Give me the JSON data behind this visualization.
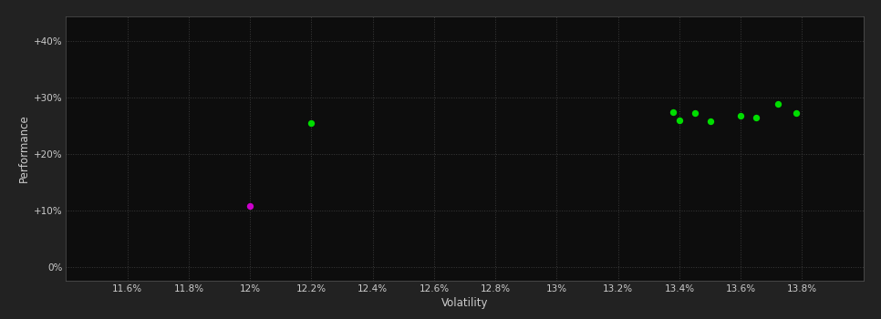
{
  "background_color": "#222222",
  "plot_bg_color": "#0d0d0d",
  "grid_color": "#3a3a3a",
  "text_color": "#cccccc",
  "xlabel": "Volatility",
  "ylabel": "Performance",
  "xlim": [
    0.114,
    0.14
  ],
  "ylim": [
    -0.025,
    0.445
  ],
  "xticks": [
    0.116,
    0.118,
    0.12,
    0.122,
    0.124,
    0.126,
    0.128,
    0.13,
    0.132,
    0.134,
    0.136,
    0.138
  ],
  "yticks": [
    0.0,
    0.1,
    0.2,
    0.3,
    0.4
  ],
  "ytick_labels": [
    "0%",
    "+10%",
    "+20%",
    "+30%",
    "+40%"
  ],
  "xtick_labels": [
    "11.6%",
    "11.8%",
    "12%",
    "12.2%",
    "12.4%",
    "12.6%",
    "12.8%",
    "13%",
    "13.2%",
    "13.4%",
    "13.6%",
    "13.8%"
  ],
  "green_points": [
    [
      0.122,
      0.255
    ],
    [
      0.1338,
      0.274
    ],
    [
      0.1345,
      0.272
    ],
    [
      0.134,
      0.26
    ],
    [
      0.135,
      0.258
    ],
    [
      0.136,
      0.268
    ],
    [
      0.1365,
      0.265
    ],
    [
      0.1372,
      0.289
    ],
    [
      0.1378,
      0.273
    ]
  ],
  "magenta_points": [
    [
      0.12,
      0.108
    ]
  ],
  "point_size": 28,
  "green_color": "#00dd00",
  "magenta_color": "#cc00cc"
}
